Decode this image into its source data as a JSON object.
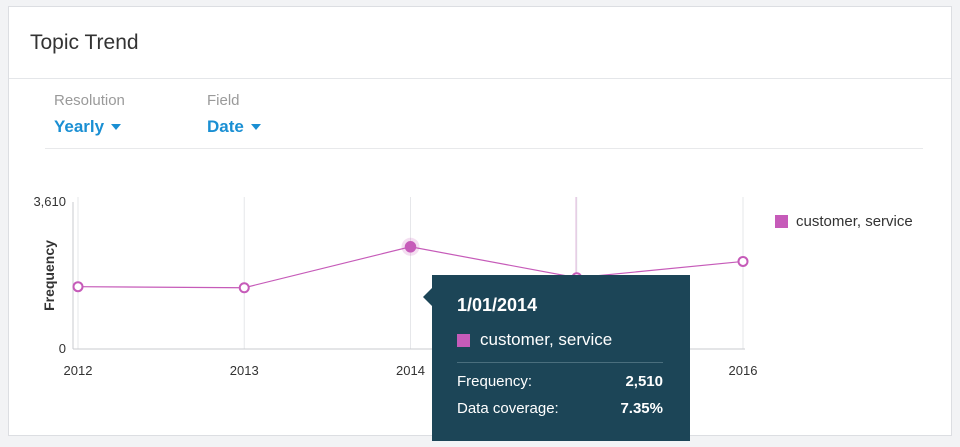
{
  "card": {
    "title": "Topic Trend"
  },
  "controls": {
    "resolution": {
      "label": "Resolution",
      "value": "Yearly"
    },
    "field": {
      "label": "Field",
      "value": "Date"
    }
  },
  "colors": {
    "series": "#c65bb9",
    "accent": "#1a8fd3",
    "tooltip_bg": "#1c4557"
  },
  "chart_data": {
    "type": "line",
    "x": [
      "2012",
      "2013",
      "2014",
      "2015",
      "2016"
    ],
    "series": [
      {
        "name": "customer, service",
        "values": [
          1530,
          1505,
          2510,
          1750,
          2150
        ]
      }
    ],
    "ylabel": "Frequency",
    "xlabel": "",
    "ylim": [
      0,
      3610
    ],
    "yticks": [
      "0",
      "3,610"
    ],
    "legend": "right",
    "grid": "vertical"
  },
  "tooltip": {
    "date": "1/01/2014",
    "series_name": "customer, service",
    "rows": [
      {
        "label": "Frequency:",
        "value": "2,510"
      },
      {
        "label": "Data coverage:",
        "value": "7.35%"
      }
    ]
  }
}
